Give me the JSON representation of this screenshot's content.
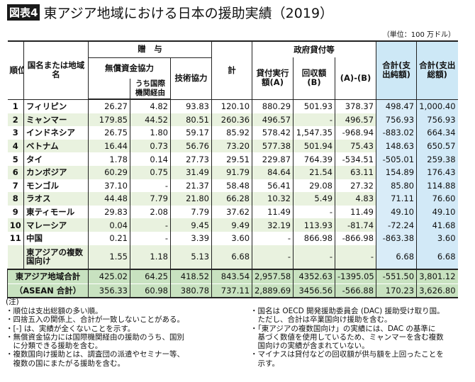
{
  "title": {
    "badge": "図表4",
    "text": "東アジア地域における日本の援助実績（2019）"
  },
  "unit": "（単位：100 万ドル）",
  "headers": {
    "rank": "順位",
    "name": "国名または地域名",
    "grant": "贈　与",
    "grant_aid": "無償資金協力",
    "via_intl": "うち国際機関経由",
    "tech": "技術協力",
    "subtotal": "計",
    "loans": "政府貸付等",
    "loan_a": "貸付実行額(A)",
    "loan_b": "回収額(B)",
    "a_minus_b": "(A)-(B)",
    "net": "合計(支出純額)",
    "gross": "合計(支出総額)"
  },
  "rows": [
    [
      "1",
      "フィリピン",
      "26.27",
      "4.82",
      "93.83",
      "120.10",
      "880.29",
      "501.93",
      "378.37",
      "498.47",
      "1,000.40"
    ],
    [
      "2",
      "ミャンマー",
      "179.85",
      "44.52",
      "80.51",
      "260.36",
      "496.57",
      "-",
      "496.57",
      "756.93",
      "756.93"
    ],
    [
      "3",
      "インドネシア",
      "26.75",
      "1.80",
      "59.17",
      "85.92",
      "578.42",
      "1,547.35",
      "-968.94",
      "-883.02",
      "664.34"
    ],
    [
      "4",
      "ベトナム",
      "16.44",
      "0.73",
      "56.76",
      "73.20",
      "577.38",
      "501.94",
      "75.43",
      "148.63",
      "650.57"
    ],
    [
      "5",
      "タイ",
      "1.78",
      "0.14",
      "27.73",
      "29.51",
      "229.87",
      "764.39",
      "-534.51",
      "-505.01",
      "259.38"
    ],
    [
      "6",
      "カンボジア",
      "60.29",
      "0.75",
      "31.49",
      "91.79",
      "84.64",
      "21.54",
      "63.11",
      "154.89",
      "176.43"
    ],
    [
      "7",
      "モンゴル",
      "37.10",
      "-",
      "21.37",
      "58.48",
      "56.41",
      "29.08",
      "27.32",
      "85.80",
      "114.88"
    ],
    [
      "8",
      "ラオス",
      "44.48",
      "7.79",
      "21.80",
      "66.28",
      "10.32",
      "5.49",
      "4.83",
      "71.11",
      "76.60"
    ],
    [
      "9",
      "東ティモール",
      "29.83",
      "2.08",
      "7.79",
      "37.62",
      "11.49",
      "-",
      "11.49",
      "49.10",
      "49.10"
    ],
    [
      "10",
      "マレーシア",
      "0.04",
      "-",
      "9.45",
      "9.49",
      "32.19",
      "113.93",
      "-81.74",
      "-72.24",
      "41.68"
    ],
    [
      "11",
      "中国",
      "0.21",
      "-",
      "3.39",
      "3.60",
      "-",
      "866.98",
      "-866.98",
      "-863.38",
      "3.60"
    ],
    [
      "",
      "東アジアの複数国向け",
      "1.55",
      "1.18",
      "5.13",
      "6.68",
      "-",
      "-",
      "-",
      "6.68",
      "6.68"
    ]
  ],
  "totals": [
    [
      "東アジア地域合計",
      "425.02",
      "64.25",
      "418.52",
      "843.54",
      "2,957.58",
      "4352.63",
      "-1395.05",
      "-551.50",
      "3,801.12"
    ],
    [
      "（ASEAN 合計）",
      "356.33",
      "60.98",
      "380.78",
      "737.11",
      "2,889.69",
      "3456.56",
      "-566.88",
      "170.23",
      "3,626.80"
    ]
  ],
  "notes": {
    "heading": "(注)",
    "left": [
      "・順位は支出総額の多い順。",
      "・四捨五入の関係上、合計が一致しないことがある。",
      "・[-] は、実績が全くないことを示す。",
      "・無償資金協力には国際機関経由の援助のうち、国別",
      "　に分類できる援助を含む。",
      "・複数国向け援助とは、調査団の派遣やセミナー等、",
      "　複数の国にまたがる援助を含む。"
    ],
    "right": [
      "・国名は OECD 開発援助委員会 (DAC) 援助受け取り国。",
      "　ただし、合計は卒業国向け援助を含む。",
      "・「東アジアの複数国向け」の実績には、DAC の基準に",
      "　基づく数値を使用しているため、ミャンマーを含む複数",
      "　国向けの実績が含まれていない。",
      "・マイナスは貸付などの回収額が供与額を上回ったことを",
      "　示す。"
    ]
  },
  "colors": {
    "row_green": "#e9f2df",
    "total_green": "#c8e2c0",
    "blue": "#d2e9f7"
  }
}
